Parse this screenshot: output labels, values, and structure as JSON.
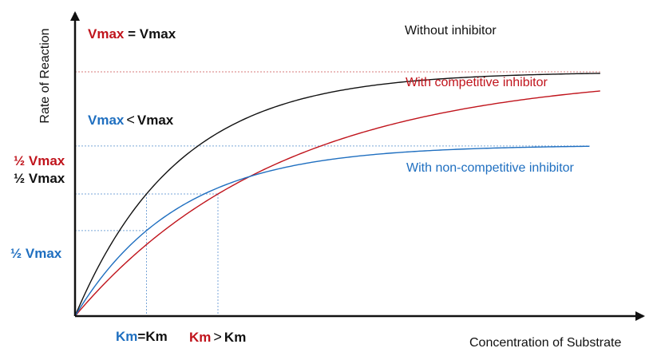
{
  "chart_data": {
    "type": "line",
    "title": "",
    "xlabel": "Concentration of Substrate",
    "ylabel": "Rate of Reaction",
    "grid": false,
    "colors": {
      "none": "#111111",
      "competitive": "#c0141c",
      "noncompetitive": "#1f6fc0"
    },
    "series": [
      {
        "name": "Without inhibitor",
        "vmax": 1.0,
        "km": 1.0,
        "color": "#111111"
      },
      {
        "name": "With competitive inhibitor",
        "vmax": 1.0,
        "km": 2.0,
        "color": "#c0141c"
      },
      {
        "name": "With non-competitive inhibitor",
        "vmax": 0.7,
        "km": 1.0,
        "color": "#1f6fc0"
      }
    ],
    "xlim": [
      0,
      8
    ],
    "ylim": [
      0,
      1.1
    ],
    "annotations": {
      "vmax_equal": {
        "left": "Vmax",
        "op": "=",
        "right": "Vmax"
      },
      "vmax_less": {
        "left": "Vmax",
        "op": "<",
        "right": "Vmax"
      },
      "half_red": "½ Vmax",
      "half_black": "½ Vmax",
      "half_blue": "½ Vmax",
      "km_equal": {
        "left": "Km",
        "op": "=",
        "right": "Km"
      },
      "km_greater": {
        "left": "Km",
        "op": ">",
        "right": "Km"
      }
    }
  }
}
